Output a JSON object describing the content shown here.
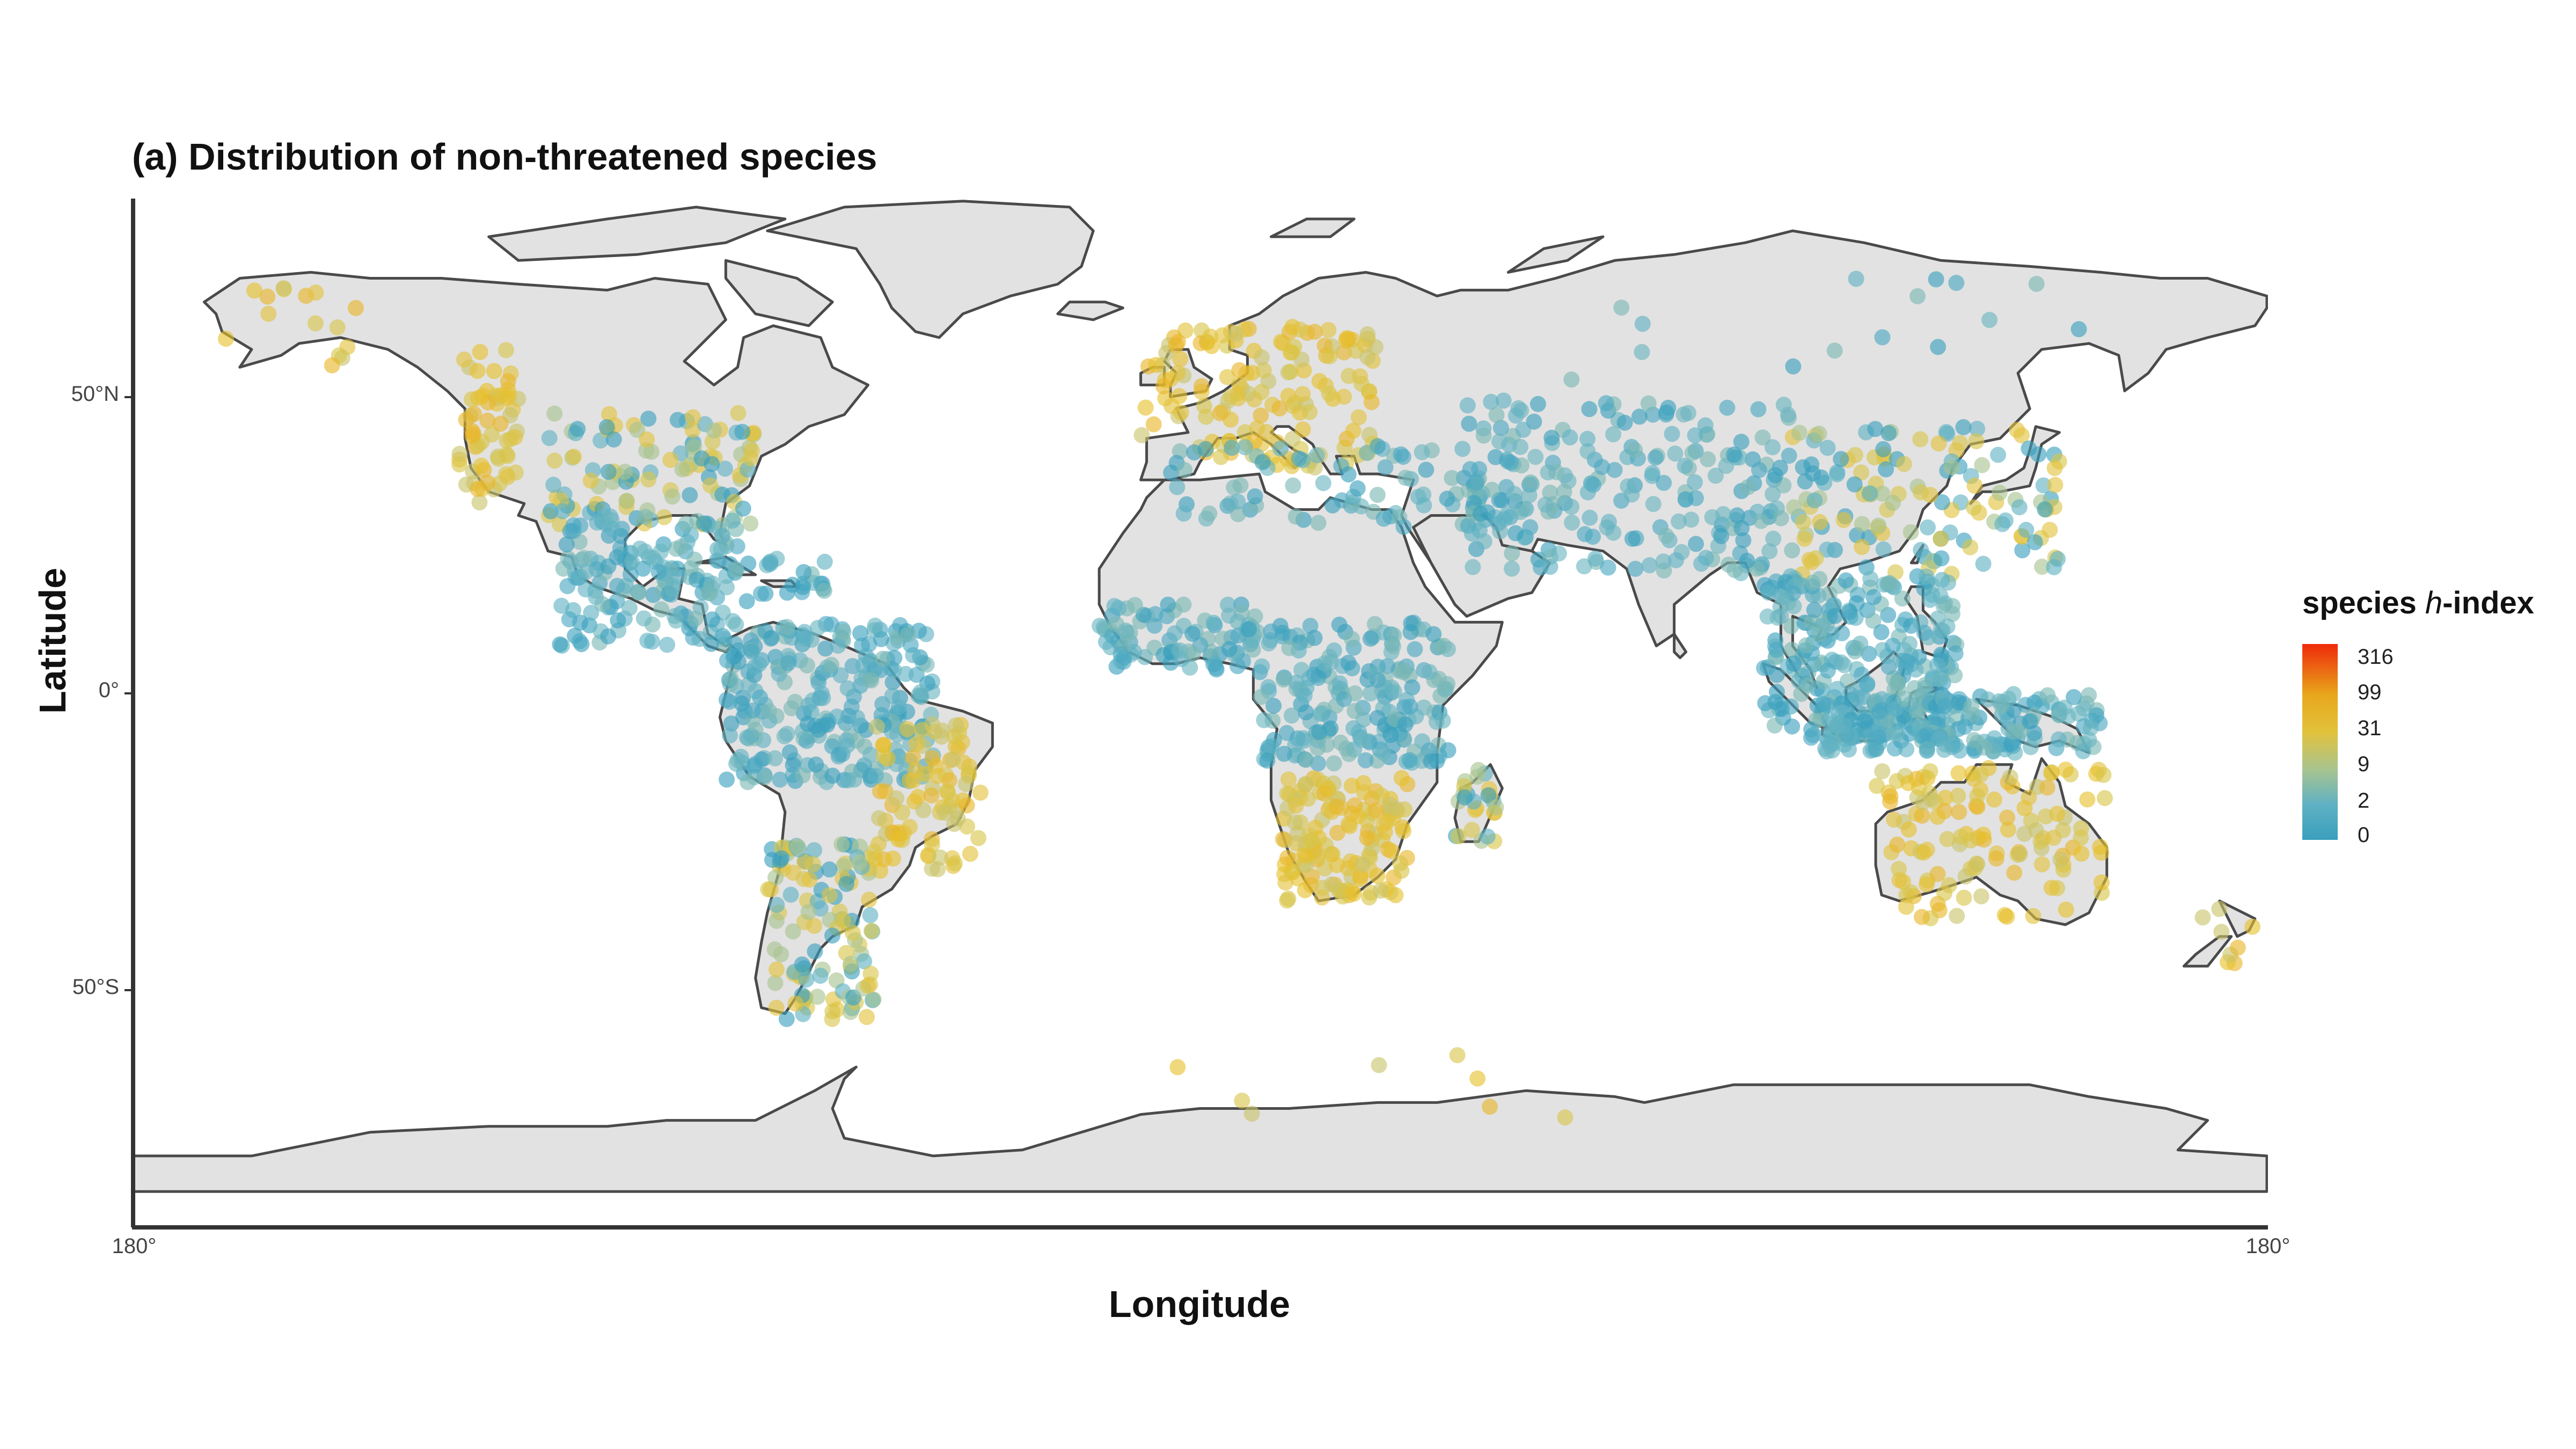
{
  "title": "(a) Distribution of non-threatened species",
  "axes": {
    "xlabel": "Longitude",
    "ylabel": "Latitude",
    "yticks": [
      "50°N",
      "0°",
      "50°S"
    ],
    "xticks_left": "180°",
    "xticks_right": "180°"
  },
  "legend": {
    "title_prefix": "species ",
    "title_italic": "h",
    "title_suffix": "-index",
    "breaks": [
      "316",
      "99",
      "31",
      "9",
      "2",
      "0"
    ],
    "color_low": "#3a9fbd",
    "color_mid": "#e2c23c",
    "color_high": "#ef2a0b"
  },
  "map": {
    "land_color": "#e2e2e2",
    "coast_color": "#4a4a4a",
    "lon_range": [
      -180,
      180
    ],
    "lat_range": [
      -90,
      84
    ]
  },
  "chart_data": {
    "type": "scatter",
    "title": "(a) Distribution of non-threatened species",
    "xlabel": "Longitude",
    "ylabel": "Latitude",
    "xlim": [
      -180,
      180
    ],
    "ylim": [
      -90,
      84
    ],
    "color_scale": "species h-index (log)",
    "clusters": [
      {
        "region": "North America west coast",
        "lon": [
          -125,
          -115
        ],
        "lat": [
          32,
          58
        ],
        "n": 60,
        "index": "yellow"
      },
      {
        "region": "USA interior",
        "lon": [
          -110,
          -75
        ],
        "lat": [
          28,
          48
        ],
        "n": 110,
        "index": "mixed"
      },
      {
        "region": "Alaska",
        "lon": [
          -165,
          -140
        ],
        "lat": [
          55,
          70
        ],
        "n": 15,
        "index": "yellow"
      },
      {
        "region": "Mexico & Central America",
        "lon": [
          -108,
          -78
        ],
        "lat": [
          8,
          30
        ],
        "n": 150,
        "index": "teal"
      },
      {
        "region": "Caribbean",
        "lon": [
          -85,
          -62
        ],
        "lat": [
          15,
          23
        ],
        "n": 30,
        "index": "teal"
      },
      {
        "region": "Northern Andes & Amazon",
        "lon": [
          -80,
          -45
        ],
        "lat": [
          -15,
          12
        ],
        "n": 260,
        "index": "teal"
      },
      {
        "region": "Brazil Atlantic coast",
        "lon": [
          -55,
          -37
        ],
        "lat": [
          -30,
          -5
        ],
        "n": 90,
        "index": "yellow"
      },
      {
        "region": "Southern cone",
        "lon": [
          -73,
          -55
        ],
        "lat": [
          -55,
          -25
        ],
        "n": 120,
        "index": "mixed"
      },
      {
        "region": "Western Europe",
        "lon": [
          -10,
          30
        ],
        "lat": [
          38,
          62
        ],
        "n": 150,
        "index": "yellow"
      },
      {
        "region": "Mediterranean & Middle East",
        "lon": [
          -5,
          60
        ],
        "lat": [
          28,
          42
        ],
        "n": 90,
        "index": "teal"
      },
      {
        "region": "West Africa",
        "lon": [
          -17,
          10
        ],
        "lat": [
          4,
          15
        ],
        "n": 90,
        "index": "teal"
      },
      {
        "region": "Central & East Africa",
        "lon": [
          10,
          42
        ],
        "lat": [
          -12,
          12
        ],
        "n": 200,
        "index": "teal"
      },
      {
        "region": "Southern Africa",
        "lon": [
          14,
          35
        ],
        "lat": [
          -35,
          -14
        ],
        "n": 140,
        "index": "yellow"
      },
      {
        "region": "Madagascar",
        "lon": [
          43,
          50
        ],
        "lat": [
          -25,
          -12
        ],
        "n": 25,
        "index": "mixed"
      },
      {
        "region": "Central & South Asia",
        "lon": [
          45,
          100
        ],
        "lat": [
          20,
          50
        ],
        "n": 220,
        "index": "teal"
      },
      {
        "region": "China & Japan",
        "lon": [
          100,
          145
        ],
        "lat": [
          20,
          45
        ],
        "n": 140,
        "index": "mixed"
      },
      {
        "region": "Southeast Asia & Philippines",
        "lon": [
          95,
          128
        ],
        "lat": [
          -8,
          20
        ],
        "n": 260,
        "index": "teal"
      },
      {
        "region": "Indonesia & New Guinea",
        "lon": [
          105,
          152
        ],
        "lat": [
          -10,
          0
        ],
        "n": 200,
        "index": "teal"
      },
      {
        "region": "Australia",
        "lon": [
          114,
          153
        ],
        "lat": [
          -38,
          -12
        ],
        "n": 130,
        "index": "yellow"
      },
      {
        "region": "New Zealand",
        "lon": [
          168,
          178
        ],
        "lat": [
          -46,
          -36
        ],
        "n": 8,
        "index": "yellow"
      },
      {
        "region": "Siberia",
        "lon": [
          60,
          150
        ],
        "lat": [
          52,
          70
        ],
        "n": 15,
        "index": "teal"
      },
      {
        "region": "Antarctica",
        "lon": [
          -20,
          100
        ],
        "lat": [
          -72,
          -60
        ],
        "n": 8,
        "index": "yellow"
      }
    ]
  }
}
